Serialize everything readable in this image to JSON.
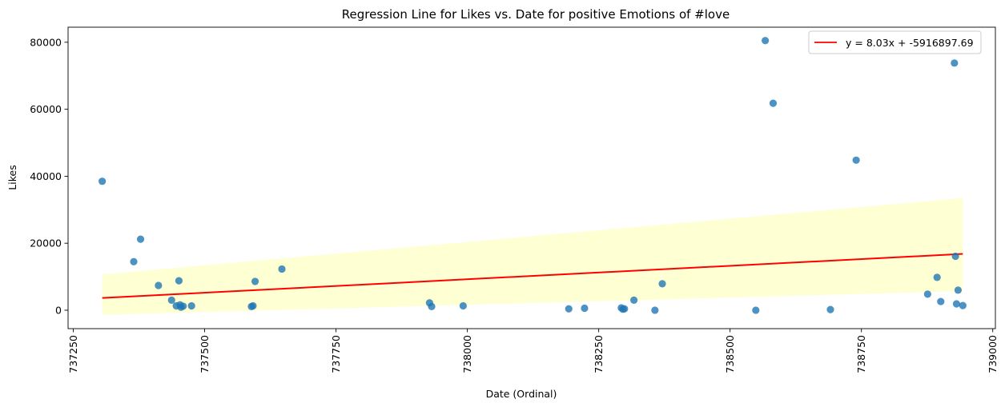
{
  "chart_data": {
    "type": "scatter",
    "title": "Regression Line for Likes vs. Date for positive Emotions of #love",
    "xlabel": "Date (Ordinal)",
    "ylabel": "Likes",
    "xlim": [
      737240,
      739005
    ],
    "ylim": [
      -5500,
      84500
    ],
    "x_ticks": [
      737250,
      737500,
      737750,
      738000,
      738250,
      738500,
      738750,
      739000
    ],
    "y_ticks": [
      0,
      20000,
      40000,
      60000,
      80000
    ],
    "x_tick_labels": [
      "737250",
      "737500",
      "737750",
      "738000",
      "738250",
      "738500",
      "738750",
      "739000"
    ],
    "y_tick_labels": [
      "0",
      "20000",
      "40000",
      "60000",
      "80000"
    ],
    "grid": false,
    "legend_position": "top-right",
    "legend": [
      "y = 8.03x + -5916897.69"
    ],
    "colors": {
      "points": "#1f77b4",
      "regression_line": "#ff0000",
      "confidence_band": "#ffffcc"
    },
    "points": [
      {
        "x": 737305,
        "y": 38500
      },
      {
        "x": 737365,
        "y": 14500
      },
      {
        "x": 737378,
        "y": 21200
      },
      {
        "x": 737412,
        "y": 7400
      },
      {
        "x": 737437,
        "y": 3000
      },
      {
        "x": 737446,
        "y": 1300
      },
      {
        "x": 737451,
        "y": 8800
      },
      {
        "x": 737453,
        "y": 1600
      },
      {
        "x": 737455,
        "y": 900
      },
      {
        "x": 737459,
        "y": 1200
      },
      {
        "x": 737475,
        "y": 1300
      },
      {
        "x": 737589,
        "y": 1100
      },
      {
        "x": 737592,
        "y": 1300
      },
      {
        "x": 737596,
        "y": 8600
      },
      {
        "x": 737647,
        "y": 12300
      },
      {
        "x": 737928,
        "y": 2200
      },
      {
        "x": 737932,
        "y": 1100
      },
      {
        "x": 737992,
        "y": 1300
      },
      {
        "x": 738193,
        "y": 400
      },
      {
        "x": 738223,
        "y": 600
      },
      {
        "x": 738293,
        "y": 700
      },
      {
        "x": 738296,
        "y": 300
      },
      {
        "x": 738299,
        "y": 400
      },
      {
        "x": 738317,
        "y": 3000
      },
      {
        "x": 738357,
        "y": 0
      },
      {
        "x": 738371,
        "y": 7900
      },
      {
        "x": 738549,
        "y": 0
      },
      {
        "x": 738567,
        "y": 80500
      },
      {
        "x": 738582,
        "y": 61800
      },
      {
        "x": 738691,
        "y": 200
      },
      {
        "x": 738740,
        "y": 44800
      },
      {
        "x": 738876,
        "y": 4800
      },
      {
        "x": 738894,
        "y": 9800
      },
      {
        "x": 738901,
        "y": 2600
      },
      {
        "x": 738927,
        "y": 73800
      },
      {
        "x": 738929,
        "y": 16100
      },
      {
        "x": 738931,
        "y": 1900
      },
      {
        "x": 738934,
        "y": 6000
      },
      {
        "x": 738943,
        "y": 1400
      }
    ],
    "regression": {
      "slope": 8.03,
      "intercept": -5916897.69,
      "x_start": 737305,
      "x_end": 738943
    },
    "confidence_band": {
      "x": [
        737305,
        738943
      ],
      "upper": [
        10700,
        33500
      ],
      "lower": [
        -1400,
        5700
      ]
    }
  }
}
